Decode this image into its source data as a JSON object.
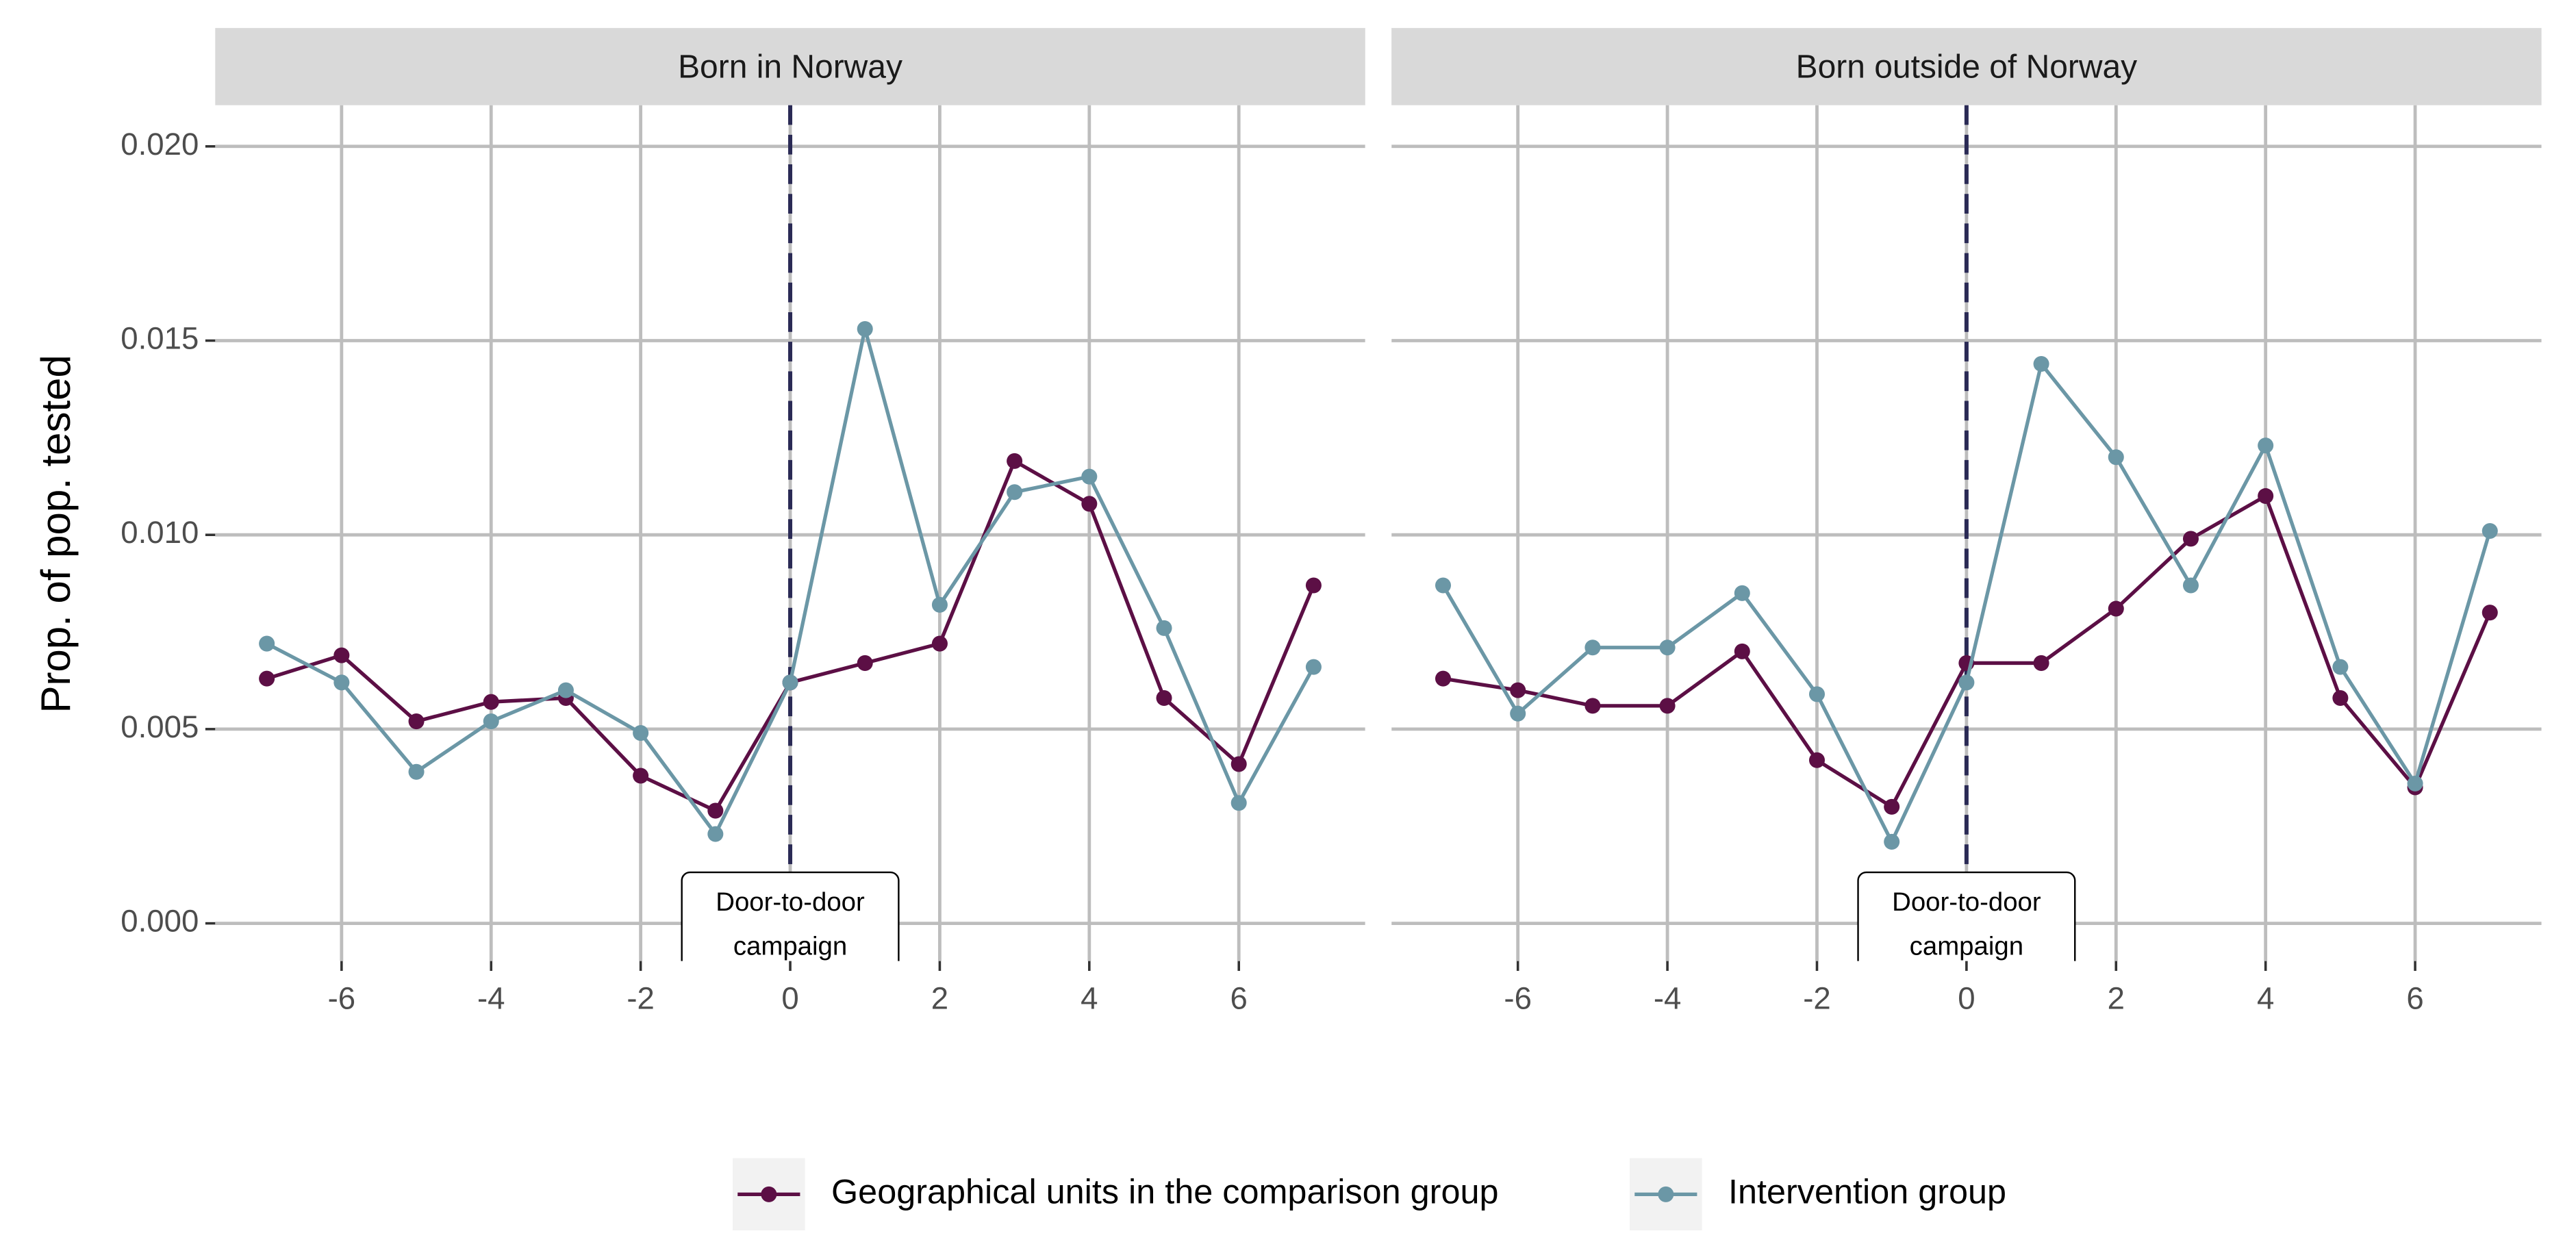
{
  "chart_data": {
    "type": "line",
    "ylabel": "Prop. of pop. tested",
    "x": [
      -7,
      -6,
      -5,
      -4,
      -3,
      -2,
      -1,
      0,
      1,
      2,
      3,
      4,
      5,
      6,
      7
    ],
    "xlim": [
      -7.69,
      7.69
    ],
    "xticks": [
      -6,
      -4,
      -2,
      0,
      2,
      4,
      6
    ],
    "ylim": [
      -0.00097,
      0.02106
    ],
    "yticks": [
      {
        "value": 0,
        "label": "0.000"
      },
      {
        "value": 0.005,
        "label": "0.005"
      },
      {
        "value": 0.01,
        "label": "0.010"
      },
      {
        "value": 0.015,
        "label": "0.015"
      },
      {
        "value": 0.02,
        "label": "0.020"
      }
    ],
    "grid": true,
    "vline": 0,
    "annotation": [
      "Door-to-door",
      "campaign"
    ],
    "legend_position": "bottom",
    "legend": [
      {
        "name": "Geographical units in the comparison group",
        "color": "#5c0f45"
      },
      {
        "name": "Intervention group",
        "color": "#6b97a6"
      }
    ],
    "facets": [
      {
        "title": "Born in Norway",
        "series": [
          {
            "values": [
              0.0063,
              0.0069,
              0.0052,
              0.0057,
              0.0058,
              0.0038,
              0.0029,
              0.0062,
              0.0067,
              0.0072,
              0.0119,
              0.0108,
              0.0058,
              0.0041,
              0.0087
            ]
          },
          {
            "values": [
              0.0072,
              0.0062,
              0.0039,
              0.0052,
              0.006,
              0.0049,
              0.0023,
              0.0062,
              0.0153,
              0.0082,
              0.0111,
              0.0115,
              0.0076,
              0.0031,
              0.0066
            ]
          }
        ]
      },
      {
        "title": "Born outside of Norway",
        "series": [
          {
            "values": [
              0.0063,
              0.006,
              0.0056,
              0.0056,
              0.007,
              0.0042,
              0.003,
              0.0067,
              0.0067,
              0.0081,
              0.0099,
              0.011,
              0.0058,
              0.0035,
              0.008
            ]
          },
          {
            "values": [
              0.0087,
              0.0054,
              0.0071,
              0.0071,
              0.0085,
              0.0059,
              0.0021,
              0.0062,
              0.0144,
              0.012,
              0.0087,
              0.0123,
              0.0066,
              0.0036,
              0.0101
            ]
          }
        ]
      }
    ]
  }
}
